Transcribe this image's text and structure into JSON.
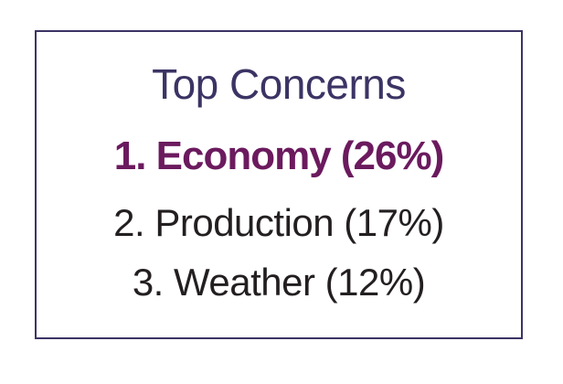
{
  "card": {
    "title": "Top Concerns",
    "items": [
      {
        "label": "1. Economy (26%)",
        "highlighted": true
      },
      {
        "label": "2. Production (17%)",
        "highlighted": false
      },
      {
        "label": "3. Weather (12%)",
        "highlighted": false
      }
    ]
  },
  "colors": {
    "border": "#3b3464",
    "title": "#3b3464",
    "highlight": "#6b1a5e",
    "text": "#231f20"
  }
}
